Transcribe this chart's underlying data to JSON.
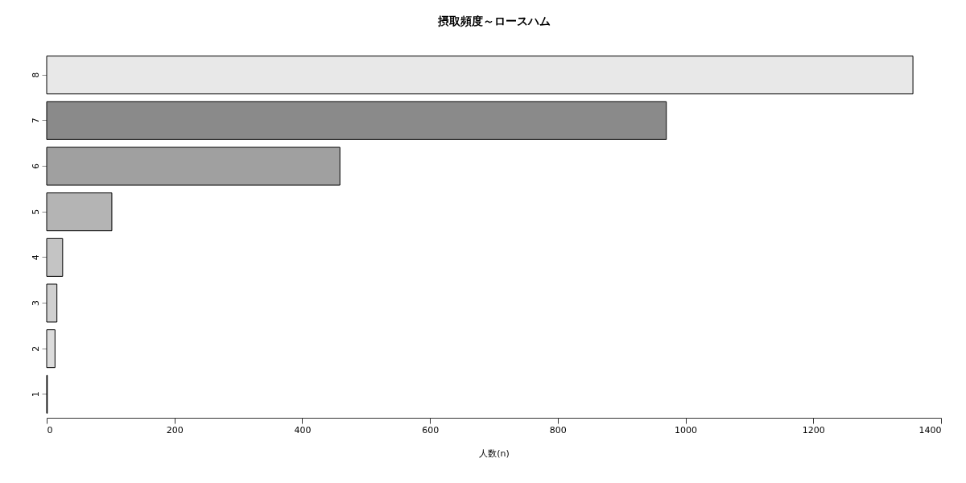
{
  "chart_data": {
    "type": "bar",
    "orientation": "horizontal",
    "title": "摂取頻度～ロースハム",
    "xlabel": "人数(n)",
    "categories": [
      "8",
      "7",
      "6",
      "5",
      "4",
      "3",
      "2",
      "1"
    ],
    "values": [
      1356,
      970,
      459,
      102,
      25,
      16,
      13,
      1
    ],
    "colors": [
      "#e8e8e8",
      "#8a8a8a",
      "#a0a0a0",
      "#b4b4b4",
      "#c4c4c4",
      "#d0d0d0",
      "#dcdcdc",
      "#000000"
    ],
    "xlim": [
      0,
      1400
    ],
    "xticks": [
      0,
      200,
      400,
      600,
      800,
      1000,
      1200,
      1400
    ],
    "grid": false
  }
}
